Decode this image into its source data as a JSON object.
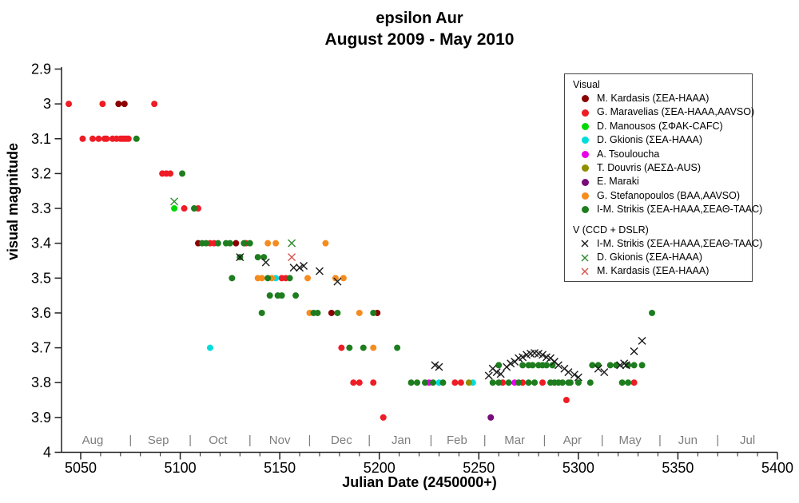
{
  "chart_data": {
    "type": "scatter",
    "title": "epsilon Aur",
    "subtitle": "August 2009 - May 2010",
    "xlabel": "Julian Date (2450000+)",
    "ylabel": "visual magnitude",
    "xlim": [
      5040,
      5400
    ],
    "ylim": [
      4.0,
      2.9
    ],
    "y_inverted": true,
    "grid": false,
    "x_ticks": {
      "values": [
        5050,
        5100,
        5150,
        5200,
        5250,
        5300,
        5350,
        5400
      ],
      "labels": [
        "5050",
        "5100",
        "5150",
        "5200",
        "5250",
        "5300",
        "5350",
        "5400"
      ],
      "minor_step": 10
    },
    "y_ticks": {
      "values": [
        2.9,
        3.0,
        3.1,
        3.2,
        3.3,
        3.4,
        3.5,
        3.6,
        3.7,
        3.8,
        3.9,
        4.0
      ],
      "labels": [
        "2.9",
        "3",
        "3.1",
        "3.2",
        "3.3",
        "3.4",
        "3.5",
        "3.6",
        "3.7",
        "3.8",
        "3.9",
        "4"
      ]
    },
    "months": {
      "labels": [
        "Aug",
        "Sep",
        "Oct",
        "Nov",
        "Dec",
        "Jan",
        "Feb",
        "Mar",
        "Apr",
        "May",
        "Jun",
        "Jul"
      ],
      "centers": [
        5056,
        5089,
        5119,
        5150,
        5181,
        5211,
        5239,
        5268,
        5297,
        5326,
        5355,
        5385
      ],
      "separators": [
        5075,
        5105,
        5135,
        5165,
        5195,
        5226,
        5253,
        5283,
        5312,
        5341,
        5370
      ],
      "separator_char": "|",
      "color": "#7d7d7d"
    },
    "legend": {
      "groups": [
        {
          "header": "Visual",
          "series_ids": [
            "kardasis_v",
            "maravelias_v",
            "manousos_v",
            "gkionis_v",
            "tsouloucha_v",
            "douvris_v",
            "maraki_v",
            "stefanopoulos_v",
            "strikis_v"
          ]
        },
        {
          "header": "V (CCD + DSLR)",
          "series_ids": [
            "strikis_ccd",
            "gkionis_ccd",
            "kardasis_ccd"
          ]
        }
      ]
    },
    "series": [
      {
        "id": "kardasis_v",
        "label": "M. Kardasis (ΣΕΑ-HAAA)",
        "marker": "dot",
        "color": "#8b0000",
        "points": [
          [
            5069,
            3.0
          ],
          [
            5072,
            3.0
          ],
          [
            5109,
            3.4
          ],
          [
            5128,
            3.4
          ],
          [
            5176,
            3.6
          ],
          [
            5199,
            3.6
          ]
        ]
      },
      {
        "id": "maravelias_v",
        "label": "G. Maravelias (ΣΕΑ-HAAA,AAVSO)",
        "marker": "dot",
        "color": "#ee1c25",
        "points": [
          [
            5044,
            3.0
          ],
          [
            5061,
            3.0
          ],
          [
            5087,
            3.0
          ],
          [
            5051,
            3.1
          ],
          [
            5056,
            3.1
          ],
          [
            5059,
            3.1
          ],
          [
            5062,
            3.1
          ],
          [
            5063,
            3.1
          ],
          [
            5066,
            3.1
          ],
          [
            5068,
            3.1
          ],
          [
            5070,
            3.1
          ],
          [
            5071,
            3.1
          ],
          [
            5072,
            3.1
          ],
          [
            5073,
            3.1
          ],
          [
            5074,
            3.1
          ],
          [
            5091,
            3.2
          ],
          [
            5093,
            3.2
          ],
          [
            5095,
            3.2
          ],
          [
            5102,
            3.3
          ],
          [
            5109,
            3.3
          ],
          [
            5115,
            3.4
          ],
          [
            5117,
            3.4
          ],
          [
            5133,
            3.4
          ],
          [
            5151,
            3.5
          ],
          [
            5153,
            3.5
          ],
          [
            5181,
            3.7
          ],
          [
            5187,
            3.8
          ],
          [
            5190,
            3.8
          ],
          [
            5197,
            3.8
          ],
          [
            5238,
            3.8
          ],
          [
            5241,
            3.8
          ],
          [
            5262,
            3.8
          ],
          [
            5272,
            3.8
          ],
          [
            5282,
            3.8
          ],
          [
            5328,
            3.8
          ],
          [
            5294,
            3.85
          ],
          [
            5202,
            3.9
          ]
        ]
      },
      {
        "id": "manousos_v",
        "label": "D. Manousos (ΣΦΑΚ-CAFC)",
        "marker": "dot",
        "color": "#00d900",
        "points": [
          [
            5097,
            3.3
          ]
        ]
      },
      {
        "id": "gkionis_v",
        "label": "D. Gkionis (ΣΕΑ-HAAA)",
        "marker": "dot",
        "color": "#00dcdc",
        "points": [
          [
            5115,
            3.7
          ],
          [
            5148,
            3.5
          ],
          [
            5230,
            3.8
          ],
          [
            5247,
            3.8
          ]
        ]
      },
      {
        "id": "tsouloucha_v",
        "label": "A. Tsouloucha",
        "marker": "dot",
        "color": "#e800e8",
        "points": [
          [
            5225,
            3.8
          ],
          [
            5268,
            3.8
          ]
        ]
      },
      {
        "id": "douvris_v",
        "label": "T. Douvris (ΑΕΣΔ-AUS)",
        "marker": "dot",
        "color": "#8f8f00",
        "points": [
          [
            5245,
            3.8
          ]
        ]
      },
      {
        "id": "maraki_v",
        "label": "E. Maraki",
        "marker": "dot",
        "color": "#7a0b7a",
        "points": [
          [
            5256,
            3.9
          ]
        ]
      },
      {
        "id": "stefanopoulos_v",
        "label": "G. Stefanopoulos (BAA,AAVSO)",
        "marker": "dot",
        "color": "#f68b1e",
        "points": [
          [
            5144,
            3.4
          ],
          [
            5148,
            3.4
          ],
          [
            5173,
            3.4
          ],
          [
            5139,
            3.5
          ],
          [
            5141,
            3.5
          ],
          [
            5146,
            3.5
          ],
          [
            5164,
            3.5
          ],
          [
            5178,
            3.5
          ],
          [
            5182,
            3.5
          ],
          [
            5165,
            3.6
          ],
          [
            5190,
            3.6
          ],
          [
            5197,
            3.7
          ]
        ]
      },
      {
        "id": "strikis_v",
        "label": "I-M. Strikis (ΣΕΑ-HAAA,ΣΕΑΘ-TAAC)",
        "marker": "dot",
        "color": "#1e7d1e",
        "points": [
          [
            5078,
            3.1
          ],
          [
            5101,
            3.2
          ],
          [
            5107,
            3.3
          ],
          [
            5111,
            3.4
          ],
          [
            5113,
            3.4
          ],
          [
            5119,
            3.4
          ],
          [
            5123,
            3.4
          ],
          [
            5125,
            3.4
          ],
          [
            5132,
            3.4
          ],
          [
            5135,
            3.4
          ],
          [
            5130,
            3.44
          ],
          [
            5139,
            3.44
          ],
          [
            5142,
            3.44
          ],
          [
            5126,
            3.5
          ],
          [
            5144,
            3.5
          ],
          [
            5155,
            3.5
          ],
          [
            5145,
            3.55
          ],
          [
            5149,
            3.55
          ],
          [
            5151,
            3.55
          ],
          [
            5158,
            3.55
          ],
          [
            5141,
            3.6
          ],
          [
            5167,
            3.6
          ],
          [
            5169,
            3.6
          ],
          [
            5179,
            3.6
          ],
          [
            5197,
            3.6
          ],
          [
            5337,
            3.6
          ],
          [
            5185,
            3.7
          ],
          [
            5192,
            3.7
          ],
          [
            5209,
            3.7
          ],
          [
            5260,
            3.75
          ],
          [
            5272,
            3.75
          ],
          [
            5275,
            3.75
          ],
          [
            5277,
            3.75
          ],
          [
            5280,
            3.75
          ],
          [
            5282,
            3.75
          ],
          [
            5284,
            3.75
          ],
          [
            5287,
            3.75
          ],
          [
            5307,
            3.75
          ],
          [
            5310,
            3.75
          ],
          [
            5316,
            3.75
          ],
          [
            5319,
            3.75
          ],
          [
            5325,
            3.75
          ],
          [
            5328,
            3.75
          ],
          [
            5332,
            3.75
          ],
          [
            5216,
            3.8
          ],
          [
            5219,
            3.8
          ],
          [
            5223,
            3.8
          ],
          [
            5227,
            3.8
          ],
          [
            5232,
            3.8
          ],
          [
            5257,
            3.8
          ],
          [
            5260,
            3.8
          ],
          [
            5265,
            3.8
          ],
          [
            5270,
            3.8
          ],
          [
            5275,
            3.8
          ],
          [
            5278,
            3.8
          ],
          [
            5286,
            3.8
          ],
          [
            5288,
            3.8
          ],
          [
            5290,
            3.8
          ],
          [
            5292,
            3.8
          ],
          [
            5295,
            3.8
          ],
          [
            5296,
            3.8
          ],
          [
            5300,
            3.8
          ],
          [
            5306,
            3.8
          ],
          [
            5322,
            3.8
          ],
          [
            5325,
            3.8
          ]
        ]
      },
      {
        "id": "strikis_ccd",
        "label": "I-M. Strikis (ΣΕΑ-HAAA,ΣΕΑΘ-TAAC)",
        "marker": "x",
        "color": "#1a1a1a",
        "points": [
          [
            5130,
            3.44
          ],
          [
            5143,
            3.455
          ],
          [
            5157,
            3.47
          ],
          [
            5160,
            3.47
          ],
          [
            5162,
            3.465
          ],
          [
            5170,
            3.48
          ],
          [
            5179,
            3.51
          ],
          [
            5228,
            3.75
          ],
          [
            5230,
            3.755
          ],
          [
            5255,
            3.78
          ],
          [
            5257,
            3.76
          ],
          [
            5259,
            3.77
          ],
          [
            5261,
            3.775
          ],
          [
            5264,
            3.755
          ],
          [
            5266,
            3.745
          ],
          [
            5268,
            3.74
          ],
          [
            5270,
            3.73
          ],
          [
            5272,
            3.727
          ],
          [
            5274,
            3.72
          ],
          [
            5276,
            3.717
          ],
          [
            5278,
            3.715
          ],
          [
            5280,
            3.717
          ],
          [
            5282,
            3.72
          ],
          [
            5284,
            3.727
          ],
          [
            5286,
            3.73
          ],
          [
            5288,
            3.74
          ],
          [
            5290,
            3.75
          ],
          [
            5293,
            3.76
          ],
          [
            5295,
            3.77
          ],
          [
            5298,
            3.777
          ],
          [
            5300,
            3.785
          ],
          [
            5310,
            3.76
          ],
          [
            5313,
            3.77
          ],
          [
            5321,
            3.75
          ],
          [
            5323,
            3.745
          ],
          [
            5324,
            3.75
          ],
          [
            5328,
            3.71
          ],
          [
            5332,
            3.68
          ]
        ]
      },
      {
        "id": "gkionis_ccd",
        "label": "D. Gkionis (ΣΕΑ-HAAA)",
        "marker": "x",
        "color": "#2e8b2e",
        "points": [
          [
            5097,
            3.28
          ],
          [
            5156,
            3.4
          ]
        ]
      },
      {
        "id": "kardasis_ccd",
        "label": "M. Kardasis (ΣΕΑ-HAAA)",
        "marker": "x",
        "color": "#d9544f",
        "points": [
          [
            5156,
            3.44
          ]
        ]
      }
    ]
  }
}
